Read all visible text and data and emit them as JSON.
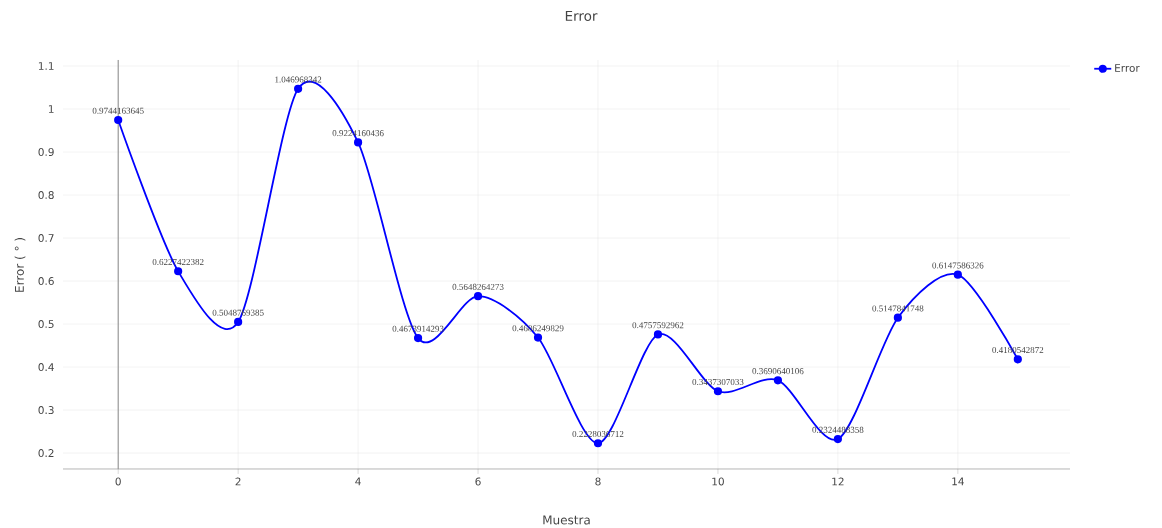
{
  "chart_data": {
    "type": "line",
    "title": "Error",
    "xlabel": "Muestra",
    "ylabel": "Error ( ° )",
    "x": [
      0,
      1,
      2,
      3,
      4,
      5,
      6,
      7,
      8,
      9,
      10,
      11,
      12,
      13,
      14,
      15
    ],
    "series": [
      {
        "name": "Error",
        "color": "#0000ff",
        "values": [
          0.9744163645,
          0.6227422382,
          0.5048769385,
          1.046968342,
          0.9224160436,
          0.4673914293,
          0.5648264273,
          0.4686249829,
          0.2228036712,
          0.4757592962,
          0.3437307033,
          0.3690640106,
          0.2324488358,
          0.5147841748,
          0.6147586326,
          0.4180542872
        ]
      }
    ],
    "xlim": [
      -0.92,
      15.87
    ],
    "ylim": [
      0.163,
      1.114
    ],
    "xticks": [
      0,
      2,
      4,
      6,
      8,
      10,
      12,
      14
    ],
    "yticks": [
      0.2,
      0.3,
      0.4,
      0.5,
      0.6,
      0.7,
      0.8,
      0.9,
      1,
      1.1
    ],
    "ref_lines": [
      {
        "axis": "x",
        "value": 0,
        "color": "#888888"
      }
    ],
    "grid": true,
    "legend": "top right",
    "marker": "circle",
    "line_style": "solid",
    "data_labels": true
  }
}
